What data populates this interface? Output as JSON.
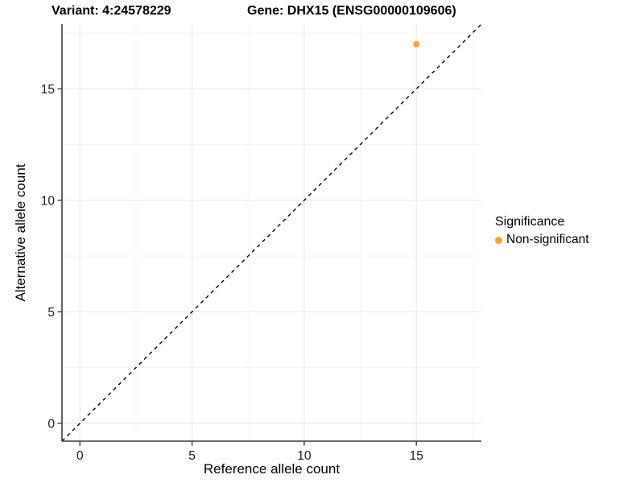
{
  "chart_data": {
    "type": "scatter",
    "titles": [
      "Variant: 4:24578229",
      "Gene: DHX15 (ENSG00000109606)"
    ],
    "xlabel": "Reference allele count",
    "ylabel": "Alternative allele count",
    "xlim": [
      -0.8,
      17.9
    ],
    "ylim": [
      -0.8,
      17.9
    ],
    "xticks": [
      0,
      5,
      10,
      15
    ],
    "yticks": [
      0,
      5,
      10,
      15
    ],
    "minor_gridlines": [
      2.5,
      7.5,
      12.5,
      17.5
    ],
    "grid": "on",
    "identity_line": {
      "slope": 1,
      "intercept": 0,
      "style": "dashed",
      "color": "#000000"
    },
    "series": [
      {
        "name": "Non-significant",
        "color": "#FAA53C",
        "points": [
          [
            15,
            17
          ]
        ]
      }
    ],
    "legend": {
      "title": "Significance",
      "position": "right",
      "items": [
        {
          "label": "Non-significant",
          "color": "#FAA53C",
          "marker": "circle-icon"
        }
      ]
    },
    "colors": {
      "axis_line": "#3d3d3d",
      "tick_label": "#1a1a1a",
      "major_grid": "#e9e9e9",
      "minor_grid": "#f4f4f4",
      "background": "#ffffff"
    }
  }
}
